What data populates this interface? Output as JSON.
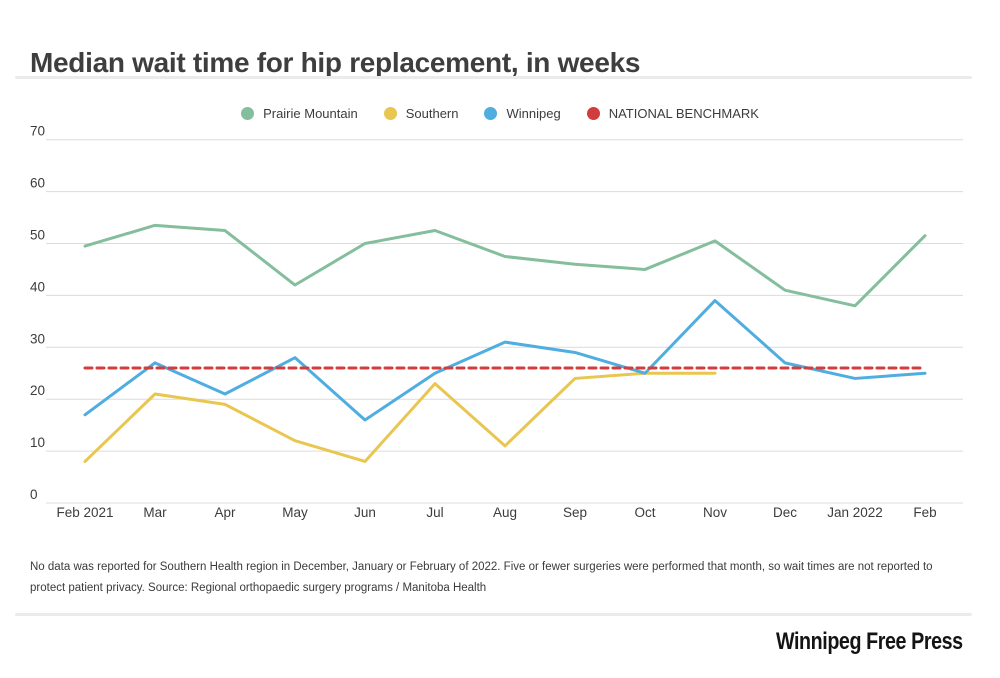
{
  "page": {
    "title": "Median wait time for hip replacement, in weeks",
    "footnote": "No data was reported for Southern Health region in December, January or February of 2022. Five or fewer surgeries were performed that month, so wait times are not reported to protect patient privacy.  Source: Regional orthopaedic surgery programs / Manitoba Health",
    "brand": "Winnipeg Free Press"
  },
  "colors": {
    "background": "#ffffff",
    "title_text": "#3e3e3e",
    "axis_text": "#3c3c3c",
    "gridline": "#dcdcdc",
    "divider": "#ebebeb",
    "prairie_mountain": "#84BE9C",
    "southern": "#E9C64F",
    "winnipeg": "#4FADE0",
    "benchmark": "#D23C3C"
  },
  "chart_data": {
    "type": "line",
    "title": "Median wait time for hip replacement, in weeks",
    "xlabel": "",
    "ylabel": "weeks",
    "ylim": [
      0,
      70
    ],
    "yticks": [
      0,
      10,
      20,
      30,
      40,
      50,
      60,
      70
    ],
    "grid": "horizontal",
    "legend_position": "top",
    "categories": [
      "Feb 2021",
      "Mar",
      "Apr",
      "May",
      "Jun",
      "Jul",
      "Aug",
      "Sep",
      "Oct",
      "Nov",
      "Dec",
      "Jan 2022",
      "Feb"
    ],
    "series": [
      {
        "name": "Prairie Mountain",
        "color": "#84BE9C",
        "style": "solid",
        "values": [
          49.5,
          53.5,
          52.5,
          42,
          50,
          52.5,
          47.5,
          46,
          45,
          50.5,
          41,
          38,
          51.5
        ]
      },
      {
        "name": "Southern",
        "color": "#E9C64F",
        "style": "solid",
        "values": [
          8,
          21,
          19,
          12,
          8,
          23,
          11,
          24,
          25,
          25,
          null,
          null,
          null
        ]
      },
      {
        "name": "Winnipeg",
        "color": "#4FADE0",
        "style": "solid",
        "values": [
          17,
          27,
          21,
          28,
          16,
          25,
          31,
          29,
          25,
          39,
          27,
          24,
          25
        ]
      },
      {
        "name": "NATIONAL BENCHMARK",
        "color": "#D23C3C",
        "style": "dashed",
        "values": [
          26,
          26,
          26,
          26,
          26,
          26,
          26,
          26,
          26,
          26,
          26,
          26,
          26
        ]
      }
    ]
  }
}
